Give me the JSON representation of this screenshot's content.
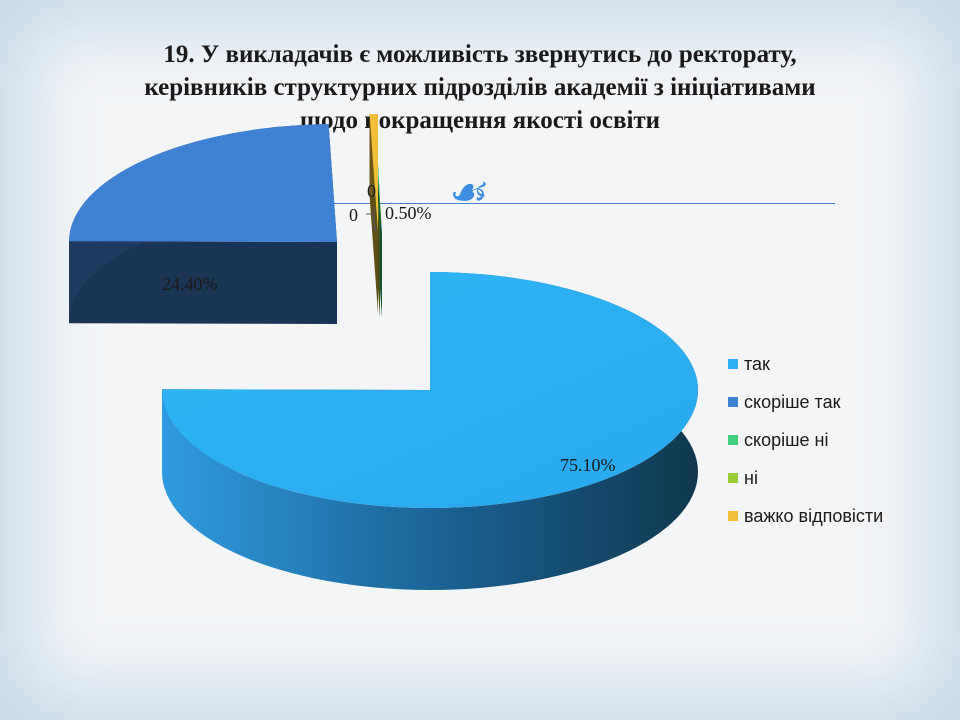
{
  "slide": {
    "title": "19. У викладачів є можливість звернутись до ректорату, керівників структурних підрозділів академії з ініціативами щодо покращення якості освіти"
  },
  "chart_data": {
    "type": "pie",
    "title": "19. У викладачів є можливість звернутись до ректорату, керівників структурних підрозділів академії з ініціативами щодо покращення якості освіти",
    "legend_position": "right",
    "categories": [
      "так",
      "скоріше так",
      "скоріше ні",
      "ні",
      "важко відповісти"
    ],
    "values": [
      75.1,
      24.4,
      0,
      0,
      0.5
    ],
    "data_labels": [
      "75.10%",
      "24.40%",
      "0",
      "0",
      "0.50%"
    ],
    "colors": [
      "#2fb0f4",
      "#3f82d4",
      "#3fcf7a",
      "#9acd32",
      "#f2c037"
    ]
  }
}
